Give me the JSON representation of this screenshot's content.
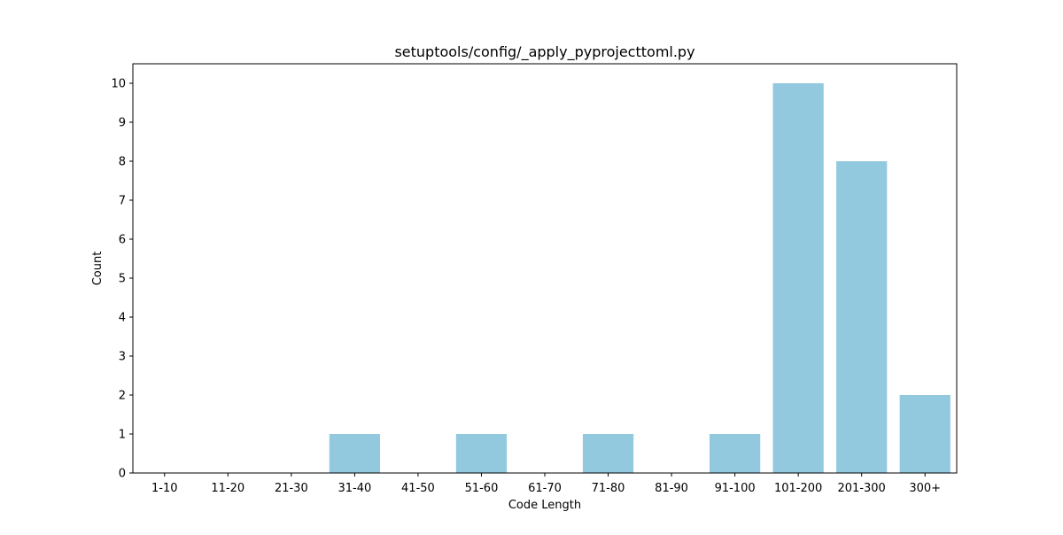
{
  "chart_data": {
    "type": "bar",
    "title": "setuptools/config/_apply_pyprojecttoml.py",
    "xlabel": "Code Length",
    "ylabel": "Count",
    "categories": [
      "1-10",
      "11-20",
      "21-30",
      "31-40",
      "41-50",
      "51-60",
      "61-70",
      "71-80",
      "81-90",
      "91-100",
      "101-200",
      "201-300",
      "300+"
    ],
    "values": [
      0,
      0,
      0,
      1,
      0,
      1,
      0,
      1,
      0,
      1,
      10,
      8,
      2
    ],
    "ylim": [
      0,
      10.5
    ],
    "yticks": [
      0,
      1,
      2,
      3,
      4,
      5,
      6,
      7,
      8,
      9,
      10
    ],
    "grid": false,
    "legend": "none",
    "bar_color": "#92c9df",
    "axis_color": "#000000"
  }
}
